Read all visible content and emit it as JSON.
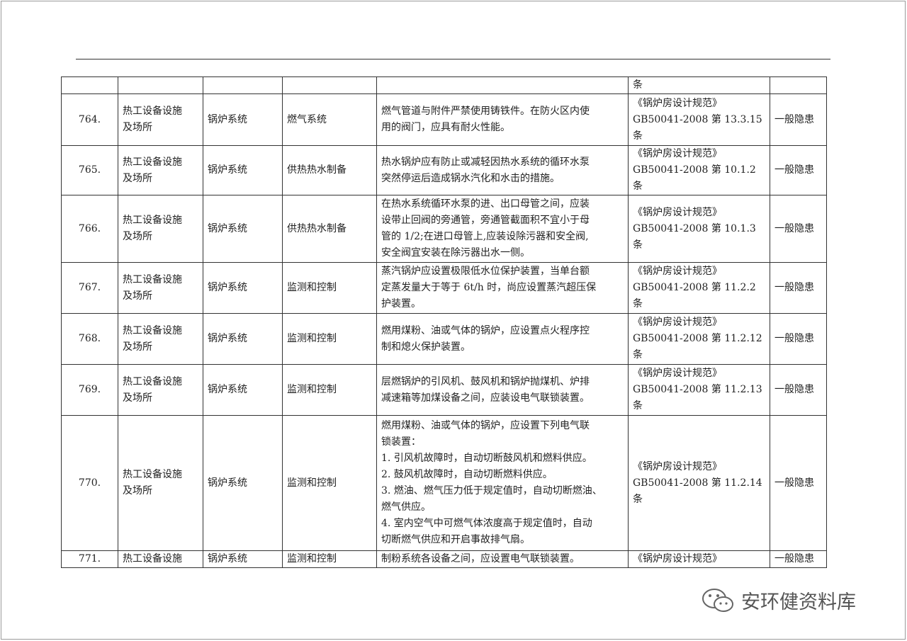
{
  "table": {
    "columns": [
      80,
      120,
      112,
      133,
      355,
      200,
      80
    ],
    "rows": [
      {
        "h": 24,
        "cells": [
          "",
          "",
          "",
          "",
          "",
          "条",
          ""
        ]
      },
      {
        "h": 73,
        "cells": [
          "764.",
          "热工设备设施\n及场所",
          "锅炉系统",
          "燃气系统",
          "燃气管道与附件严禁使用铸铁件。在防火区内使\n用的阀门，应具有耐火性能。",
          "《锅炉房设计规范》\nGB50041-2008 第 13.3.15\n条",
          "一般隐患"
        ]
      },
      {
        "h": 48,
        "cells": [
          "765.",
          "热工设备设施\n及场所",
          "锅炉系统",
          "供热热水制备",
          "热水锅炉应有防止或减轻因热水系统的循环水泵\n突然停运后造成锅水汽化和水击的措施。",
          "《锅炉房设计规范》\nGB50041-2008 第 10.1.2 条",
          "一般隐患"
        ]
      },
      {
        "h": 95,
        "cells": [
          "766.",
          "热工设备设施\n及场所",
          "锅炉系统",
          "供热热水制备",
          "在热水系统循环水泵的进、出口母管之间，应装\n设带止回阀的旁通管，旁通管截面积不宜小于母\n管的 1/2;在进口母管上,应装设除污器和安全阀,\n安全阀宜安装在除污器出水一侧。",
          "《锅炉房设计规范》\nGB50041-2008 第 10.1.3 条",
          "一般隐患"
        ]
      },
      {
        "h": 72,
        "cells": [
          "767.",
          "热工设备设施\n及场所",
          "锅炉系统",
          "监测和控制",
          "蒸汽锅炉应设置极限低水位保护装置，当单台额\n定蒸发量大于等于 6t/h 时，尚应设置蒸汽超压保\n护装置。",
          "《锅炉房设计规范》\nGB50041-2008 第 11.2.2 条",
          "一般隐患"
        ]
      },
      {
        "h": 72,
        "cells": [
          "768.",
          "热工设备设施\n及场所",
          "锅炉系统",
          "监测和控制",
          "燃用煤粉、油或气体的锅炉，应设置点火程序控\n制和熄火保护装置。",
          "《锅炉房设计规范》\nGB50041-2008 第 11.2.12\n条",
          "一般隐患"
        ]
      },
      {
        "h": 72,
        "cells": [
          "769.",
          "热工设备设施\n及场所",
          "锅炉系统",
          "监测和控制",
          "层燃锅炉的引风机、鼓风机和锅炉抛煤机、炉排\n减速箱等加煤设备之间，应装设电气联锁装置。",
          "《锅炉房设计规范》\nGB50041-2008 第 11.2.13\n条",
          "一般隐患"
        ]
      },
      {
        "h": 191,
        "cells": [
          "770.",
          "热工设备设施\n及场所",
          "锅炉系统",
          "监测和控制",
          "燃用煤粉、油或气体的锅炉，应设置下列电气联\n锁装置：\n1.  引风机故障时，自动切断鼓风机和燃料供应。\n2.  鼓风机故障时，自动切断燃料供应。\n3.  燃油、燃气压力低于规定值时，自动切断燃油、\n燃气供应。\n4.  室内空气中可燃气体浓度高于规定值时，自动\n切断燃气供应和开启事故排气扇。",
          "《锅炉房设计规范》\nGB50041-2008 第 11.2.14\n条",
          "一般隐患"
        ]
      },
      {
        "h": 24,
        "cells": [
          "771.",
          "热工设备设施",
          "锅炉系统",
          "监测和控制",
          "制粉系统各设备之间，应设置电气联锁装置。",
          "《锅炉房设计规范》",
          "一般隐患"
        ]
      }
    ]
  },
  "watermark": {
    "text": "安环健资料库",
    "icon": "wechat-icon"
  }
}
